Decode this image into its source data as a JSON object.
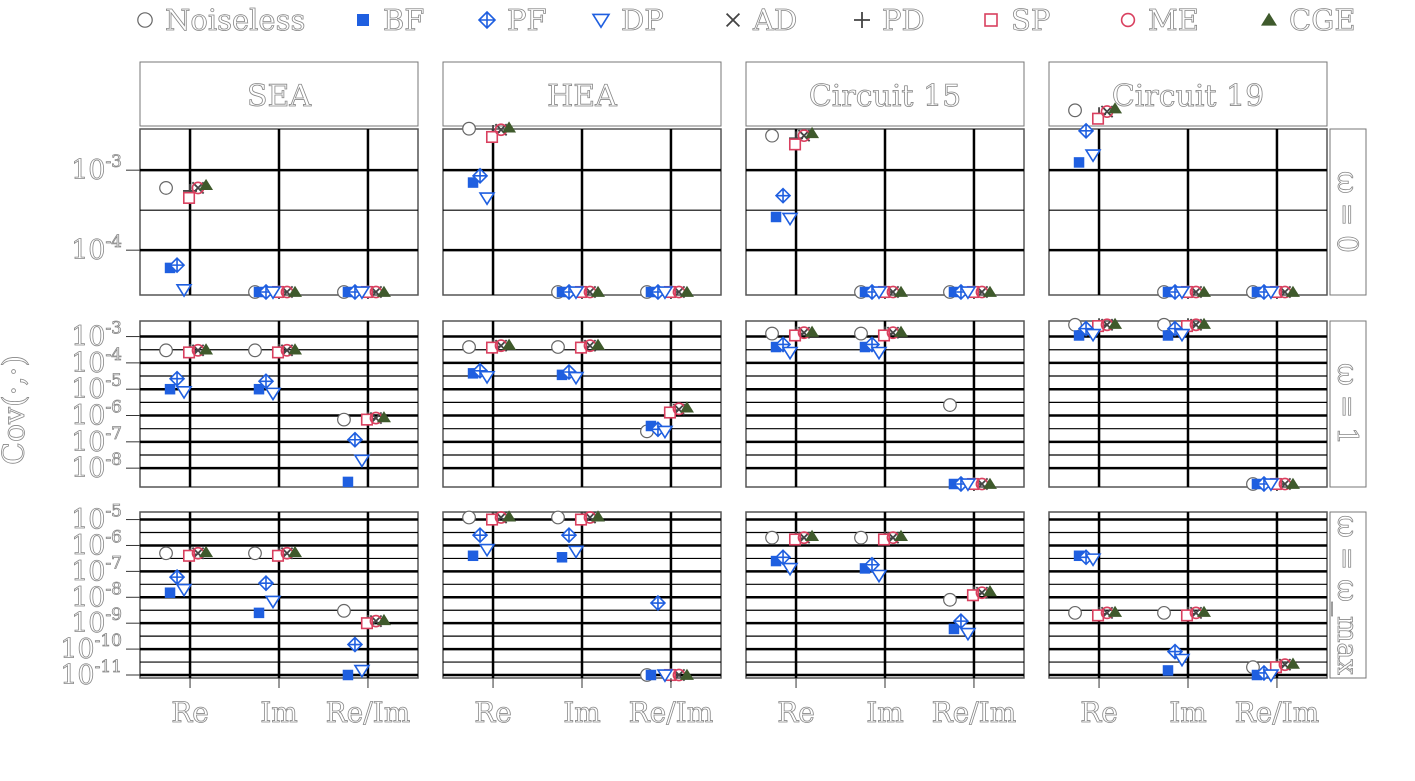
{
  "chart_data": {
    "type": "scatter",
    "ylabel": "Cov(·,·)",
    "yscale": "log",
    "x_categories": [
      "Re",
      "Im",
      "Re/Im"
    ],
    "legend_position": "top",
    "legend": [
      {
        "key": "noiseless",
        "label": "Noiseless",
        "marker": "open-circle",
        "color": "#555555"
      },
      {
        "key": "BF",
        "label": "BF",
        "marker": "filled-square",
        "color": "#1f5fe0"
      },
      {
        "key": "PF",
        "label": "PF",
        "marker": "diamond-plus",
        "color": "#1f5fe0"
      },
      {
        "key": "DP",
        "label": "DP",
        "marker": "open-triangle-down",
        "color": "#1f5fe0"
      },
      {
        "key": "AD",
        "label": "AD",
        "marker": "cross",
        "color": "#444444"
      },
      {
        "key": "PD",
        "label": "PD",
        "marker": "plus",
        "color": "#444444"
      },
      {
        "key": "SP",
        "label": "SP",
        "marker": "open-square",
        "color": "#d9405f"
      },
      {
        "key": "ME",
        "label": "ME",
        "marker": "open-circle",
        "color": "#d9405f"
      },
      {
        "key": "CGE",
        "label": "CGE",
        "marker": "filled-triangle-up",
        "color": "#3f5a2c"
      }
    ],
    "columns": [
      "SEA",
      "HEA",
      "Circuit 15",
      "Circuit 19"
    ],
    "rows": [
      {
        "label": "ω = 0",
        "ylim": [
          3e-05,
          0.003
        ],
        "ticks": [
          {
            "value": 0.001,
            "label": "10-3"
          },
          {
            "value": 0.0001,
            "label": "10-4"
          }
        ],
        "panels": [
          {
            "Re": {
              "noiseless": 0.0006,
              "BF": 6e-05,
              "PF": 6.5e-05,
              "DP": 3.2e-05,
              "AD": 0.0006,
              "PD": 0.00055,
              "SP": 0.00045,
              "ME": 0.0006,
              "CGE": 0.00065
            },
            "Im": {
              "noiseless": 3e-05,
              "BF": 3e-05,
              "PF": 3e-05,
              "DP": 3e-05,
              "AD": 3e-05,
              "PD": 3e-05,
              "SP": 3e-05,
              "ME": 3e-05,
              "CGE": 3e-05
            },
            "Re/Im": {
              "noiseless": 3e-05,
              "BF": 3e-05,
              "PF": 3e-05,
              "DP": 3e-05,
              "AD": 3e-05,
              "PD": 3e-05,
              "SP": 3e-05,
              "ME": 3e-05,
              "CGE": 3e-05
            }
          },
          {
            "Re": {
              "noiseless": 0.0033,
              "BF": 0.0007,
              "PF": 0.00085,
              "DP": 0.00045,
              "AD": 0.0032,
              "PD": 0.003,
              "SP": 0.0026,
              "ME": 0.0032,
              "CGE": 0.0034
            },
            "Im": {
              "noiseless": 3e-05,
              "BF": 3e-05,
              "PF": 3e-05,
              "DP": 3e-05,
              "AD": 3e-05,
              "PD": 3e-05,
              "SP": 3e-05,
              "ME": 3e-05,
              "CGE": 3e-05
            },
            "Re/Im": {
              "noiseless": 3e-05,
              "BF": 3e-05,
              "PF": 3e-05,
              "DP": 3e-05,
              "AD": 3e-05,
              "PD": 3e-05,
              "SP": 3e-05,
              "ME": 3e-05,
              "CGE": 3e-05
            }
          },
          {
            "Re": {
              "noiseless": 0.0027,
              "BF": 0.00026,
              "PF": 0.00048,
              "DP": 0.00025,
              "AD": 0.0027,
              "PD": 0.0025,
              "SP": 0.0021,
              "ME": 0.0027,
              "CGE": 0.0029
            },
            "Im": {
              "noiseless": 3e-05,
              "BF": 3e-05,
              "PF": 3e-05,
              "DP": 3e-05,
              "AD": 3e-05,
              "PD": 3e-05,
              "SP": 3e-05,
              "ME": 3e-05,
              "CGE": 3e-05
            },
            "Re/Im": {
              "noiseless": 3e-05,
              "BF": 3e-05,
              "PF": 3e-05,
              "DP": 3e-05,
              "AD": 3e-05,
              "PD": 3e-05,
              "SP": 3e-05,
              "ME": 3e-05,
              "CGE": 3e-05
            }
          },
          {
            "Re": {
              "noiseless": 0.0056,
              "BF": 0.00125,
              "PF": 0.0031,
              "DP": 0.00155,
              "AD": 0.0054,
              "PD": 0.005,
              "SP": 0.0044,
              "ME": 0.0054,
              "CGE": 0.0059
            },
            "Im": {
              "noiseless": 3e-05,
              "BF": 3e-05,
              "PF": 3e-05,
              "DP": 3e-05,
              "AD": 3e-05,
              "PD": 3e-05,
              "SP": 3e-05,
              "ME": 3e-05,
              "CGE": 3e-05
            },
            "Re/Im": {
              "noiseless": 3e-05,
              "BF": 3e-05,
              "PF": 3e-05,
              "DP": 3e-05,
              "AD": 3e-05,
              "PD": 3e-05,
              "SP": 3e-05,
              "ME": 3e-05,
              "CGE": 3e-05
            }
          }
        ]
      },
      {
        "label": "ω = 1",
        "ylim": [
          2.5e-09,
          0.003
        ],
        "ticks": [
          {
            "value": 0.001,
            "label": "10-3"
          },
          {
            "value": 0.0001,
            "label": "10-4"
          },
          {
            "value": 1e-05,
            "label": "10-5"
          },
          {
            "value": 1e-06,
            "label": "10-6"
          },
          {
            "value": 1e-07,
            "label": "10-7"
          },
          {
            "value": 1e-08,
            "label": "10-8"
          }
        ],
        "panels": [
          {
            "Re": {
              "noiseless": 0.0003,
              "BF": 1e-05,
              "PF": 2.5e-05,
              "DP": 8e-06,
              "AD": 0.0003,
              "PD": 0.00028,
              "SP": 0.00025,
              "ME": 0.0003,
              "CGE": 0.00032
            },
            "Im": {
              "noiseless": 0.0003,
              "BF": 1e-05,
              "PF": 2e-05,
              "DP": 7e-06,
              "AD": 0.0003,
              "PD": 0.00028,
              "SP": 0.00025,
              "ME": 0.0003,
              "CGE": 0.00032
            },
            "Re/Im": {
              "noiseless": 7e-07,
              "BF": 3e-09,
              "PF": 1.2e-07,
              "DP": 2e-08,
              "AD": 8e-07,
              "PD": 7.5e-07,
              "SP": 7e-07,
              "ME": 8e-07,
              "CGE": 8.5e-07
            }
          },
          {
            "Re": {
              "noiseless": 0.0004,
              "BF": 4e-05,
              "PF": 5e-05,
              "DP": 3e-05,
              "AD": 0.00045,
              "PD": 0.00042,
              "SP": 0.00038,
              "ME": 0.00045,
              "CGE": 0.00048
            },
            "Im": {
              "noiseless": 0.0004,
              "BF": 3.5e-05,
              "PF": 4.5e-05,
              "DP": 2.8e-05,
              "AD": 0.00045,
              "PD": 0.00042,
              "SP": 0.00038,
              "ME": 0.00045,
              "CGE": 0.00048
            },
            "Re/Im": {
              "noiseless": 2.5e-07,
              "BF": 4e-07,
              "PF": 3e-07,
              "DP": 2.5e-07,
              "AD": 1.7e-06,
              "PD": 1.6e-06,
              "SP": 1.3e-06,
              "ME": 1.8e-06,
              "CGE": 2e-06
            }
          },
          {
            "Re": {
              "noiseless": 0.0013,
              "BF": 0.0004,
              "PF": 0.0005,
              "DP": 0.00025,
              "AD": 0.0014,
              "PD": 0.0013,
              "SP": 0.0011,
              "ME": 0.0014,
              "CGE": 0.0015
            },
            "Im": {
              "noiseless": 0.0013,
              "BF": 0.0004,
              "PF": 0.0005,
              "DP": 0.00025,
              "AD": 0.0014,
              "PD": 0.0013,
              "SP": 0.0011,
              "ME": 0.0014,
              "CGE": 0.0015
            },
            "Re/Im": {
              "noiseless": 2.5e-06,
              "BF": 2.5e-09,
              "PF": 2.5e-09,
              "DP": 2.5e-09,
              "AD": 2.5e-09,
              "PD": 2.5e-09,
              "SP": 2.5e-09,
              "ME": 2.5e-09,
              "CGE": 2.5e-09
            }
          },
          {
            "Re": {
              "noiseless": 0.0028,
              "BF": 0.0011,
              "PF": 0.002,
              "DP": 0.0012,
              "AD": 0.0028,
              "PD": 0.0027,
              "SP": 0.0025,
              "ME": 0.0028,
              "CGE": 0.003
            },
            "Im": {
              "noiseless": 0.0028,
              "BF": 0.0011,
              "PF": 0.002,
              "DP": 0.0012,
              "AD": 0.0028,
              "PD": 0.0027,
              "SP": 0.0025,
              "ME": 0.0028,
              "CGE": 0.003
            },
            "Re/Im": {
              "noiseless": 2.5e-09,
              "BF": 2.5e-09,
              "PF": 2.5e-09,
              "DP": 2.5e-09,
              "AD": 2.5e-09,
              "PD": 2.5e-09,
              "SP": 2.5e-09,
              "ME": 2.5e-09,
              "CGE": 2.5e-09
            }
          }
        ]
      },
      {
        "label": "ω = ω_max",
        "ylim": [
          1e-11,
          1.5e-05
        ],
        "ticks": [
          {
            "value": 1e-05,
            "label": "10-5"
          },
          {
            "value": 1e-06,
            "label": "10-6"
          },
          {
            "value": 1e-07,
            "label": "10-7"
          },
          {
            "value": 1e-08,
            "label": "10-8"
          },
          {
            "value": 1e-09,
            "label": "10-9"
          },
          {
            "value": 1e-10,
            "label": "10-10"
          },
          {
            "value": 1e-11,
            "label": "10-11"
          }
        ],
        "panels": [
          {
            "Re": {
              "noiseless": 5e-07,
              "BF": 1.5e-08,
              "PF": 6e-08,
              "DP": 2e-08,
              "AD": 5e-07,
              "PD": 4.5e-07,
              "SP": 4e-07,
              "ME": 5e-07,
              "CGE": 5.5e-07
            },
            "Im": {
              "noiseless": 5e-07,
              "BF": 2.5e-09,
              "PF": 3.5e-08,
              "DP": 7e-09,
              "AD": 5e-07,
              "PD": 4.5e-07,
              "SP": 4e-07,
              "ME": 5e-07,
              "CGE": 5.5e-07
            },
            "Re/Im": {
              "noiseless": 3e-09,
              "BF": 1e-11,
              "PF": 1.5e-10,
              "DP": 1.5e-11,
              "AD": 1.2e-09,
              "PD": 1.1e-09,
              "SP": 1e-09,
              "ME": 1.2e-09,
              "CGE": 1.3e-09
            }
          },
          {
            "Re": {
              "noiseless": 1.2e-05,
              "BF": 4e-07,
              "PF": 2.5e-06,
              "DP": 7e-07,
              "AD": 1.2e-05,
              "PD": 1.1e-05,
              "SP": 1e-05,
              "ME": 1.2e-05,
              "CGE": 1.3e-05
            },
            "Im": {
              "noiseless": 1.2e-05,
              "BF": 3.5e-07,
              "PF": 2.5e-06,
              "DP": 6e-07,
              "AD": 1.2e-05,
              "PD": 1.1e-05,
              "SP": 1e-05,
              "ME": 1.2e-05,
              "CGE": 1.3e-05
            },
            "Re/Im": {
              "noiseless": 1e-11,
              "BF": 1e-11,
              "PF": 6e-09,
              "DP": 1e-11,
              "AD": 1e-11,
              "PD": 1e-11,
              "SP": 1e-11,
              "ME": 1e-11,
              "CGE": 1e-11
            }
          },
          {
            "Re": {
              "noiseless": 2e-06,
              "BF": 2.5e-07,
              "PF": 3.5e-07,
              "DP": 1.3e-07,
              "AD": 2e-06,
              "PD": 1.9e-06,
              "SP": 1.7e-06,
              "ME": 2e-06,
              "CGE": 2.3e-06
            },
            "Im": {
              "noiseless": 2e-06,
              "BF": 1.3e-07,
              "PF": 1.8e-07,
              "DP": 7e-08,
              "AD": 2e-06,
              "PD": 1.9e-06,
              "SP": 1.7e-06,
              "ME": 2e-06,
              "CGE": 2.3e-06
            },
            "Re/Im": {
              "noiseless": 8e-09,
              "BF": 6e-10,
              "PF": 1.2e-09,
              "DP": 4e-10,
              "AD": 1.5e-08,
              "PD": 1.4e-08,
              "SP": 1.2e-08,
              "ME": 1.5e-08,
              "CGE": 1.7e-08
            }
          },
          {
            "Re": {
              "noiseless": 2.5e-09,
              "BF": 4e-07,
              "PF": 3.5e-07,
              "DP": 3e-07,
              "AD": 2.5e-09,
              "PD": 2.3e-09,
              "SP": 2e-09,
              "ME": 2.5e-09,
              "CGE": 2.7e-09
            },
            "Im": {
              "noiseless": 2.5e-09,
              "BF": 1.5e-11,
              "PF": 8e-11,
              "DP": 4e-11,
              "AD": 2.5e-09,
              "PD": 2.3e-09,
              "SP": 2e-09,
              "ME": 2.5e-09,
              "CGE": 2.7e-09
            },
            "Re/Im": {
              "noiseless": 2e-11,
              "BF": 1e-11,
              "PF": 1.2e-11,
              "DP": 1e-11,
              "AD": 2.5e-11,
              "PD": 2.3e-11,
              "SP": 2e-11,
              "ME": 2.5e-11,
              "CGE": 2.7e-11
            }
          }
        ]
      }
    ]
  }
}
